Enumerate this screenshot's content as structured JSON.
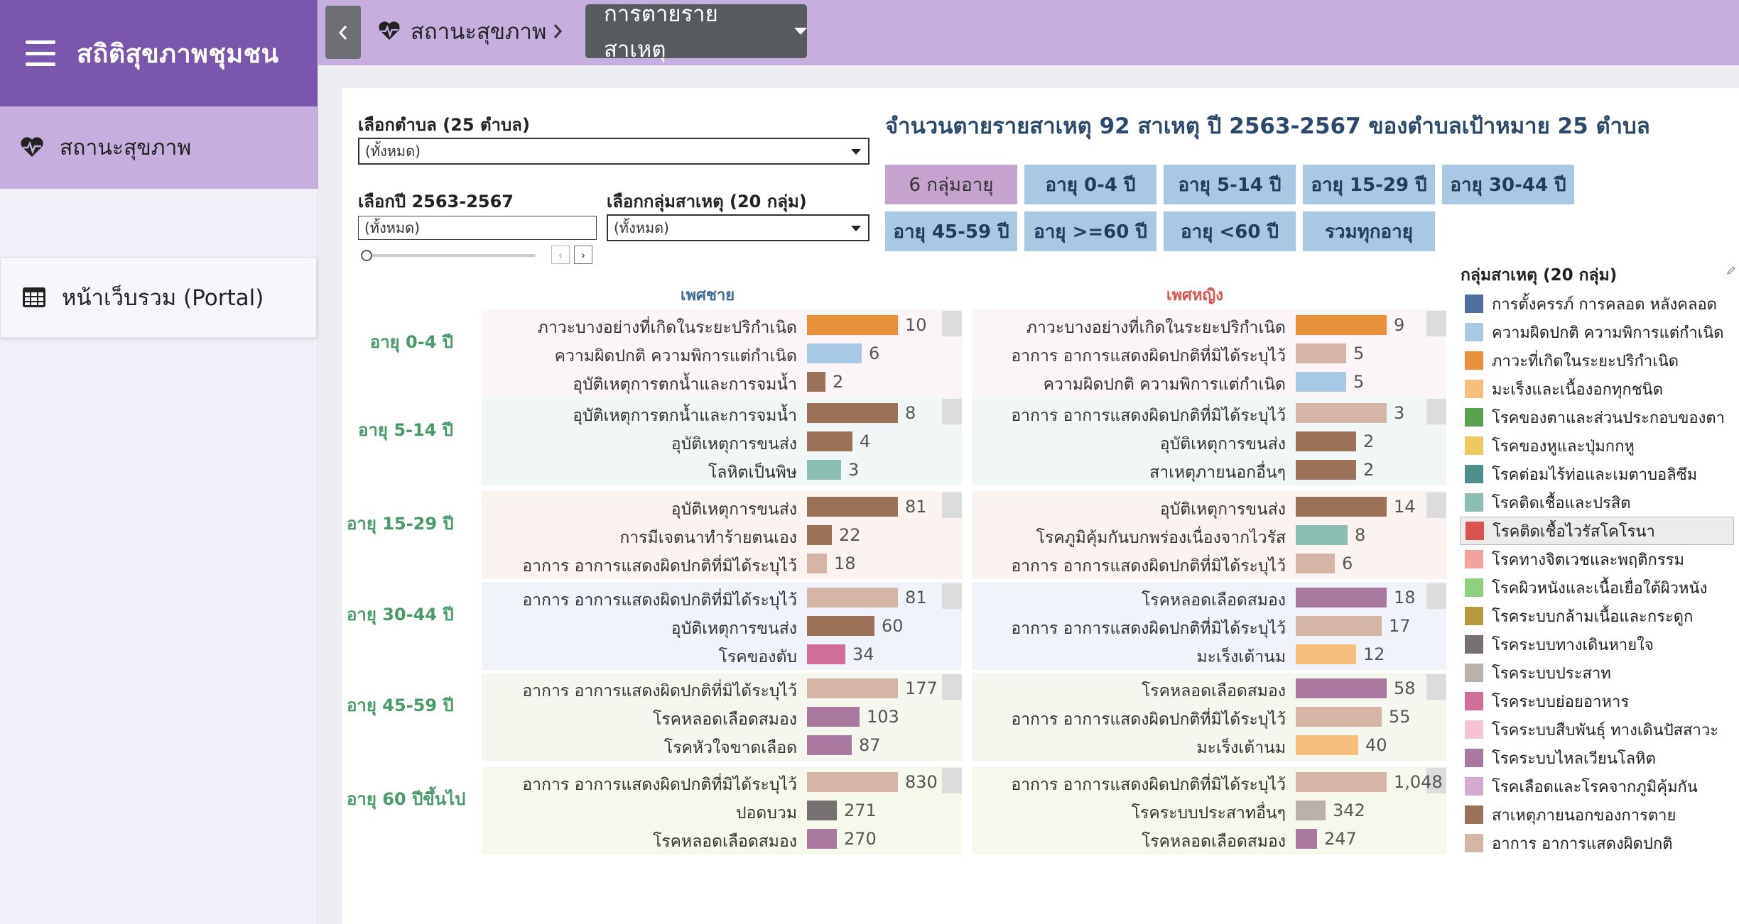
{
  "sidebar": {
    "brand": "สถิติสุขภาพชุมชน",
    "nav_health": "สถานะสุขภาพ",
    "nav_portal": "หน้าเว็บรวม (Portal)"
  },
  "breadcrumb": {
    "health": "สถานะสุขภาพ",
    "current": "การตายรายสาเหตุ"
  },
  "filters": {
    "tambon_label": "เลือกตำบล (25 ตำบล)",
    "tambon_value": "(ทั้งหมด)",
    "year_label": "เลือกปี 2563-2567",
    "year_value": "(ทั้งหมด)",
    "group_label": "เลือกกลุ่มสาเหตุ (20 กลุ่ม)",
    "group_value": "(ทั้งหมด)"
  },
  "main_title": "จำนวนตายรายสาเหตุ 92 สาเหตุ ปี 2563-2567 ของตำบลเป้าหมาย 25 ตำบล",
  "age_buttons": [
    "6 กลุ่มอายุ",
    "อายุ 0-4 ปี",
    "อายุ 5-14 ปี",
    "อายุ 15-29 ปี",
    "อายุ 30-44 ปี",
    "อายุ 45-59 ปี",
    "อายุ >=60 ปี",
    "อายุ <60 ปี",
    "รวมทุกอายุ"
  ],
  "column_heads": {
    "male": "เพศชาย",
    "female": "เพศหญิง"
  },
  "colors": {
    "brand": "#7a57ad",
    "topbar": "#c6afdf",
    "male_head": "#3e6a94",
    "female_head": "#d9534f"
  },
  "chart_data": {
    "type": "bar",
    "groups": [
      {
        "age": "อายุ 0-4 ปี",
        "male": [
          {
            "label": "ภาวะบางอย่างที่เกิดในระยะปริกำเนิด",
            "value": 10,
            "display": "10",
            "color": "#e8913a"
          },
          {
            "label": "ความผิดปกติ ความพิการแต่กำเนิด",
            "value": 6,
            "display": "6",
            "color": "#a7c9e6"
          },
          {
            "label": "อุบัติเหตุการตกน้ำและการจมน้ำ",
            "value": 2,
            "display": "2",
            "color": "#9b7157"
          }
        ],
        "female": [
          {
            "label": "ภาวะบางอย่างที่เกิดในระยะปริกำเนิด",
            "value": 9,
            "display": "9",
            "color": "#e8913a"
          },
          {
            "label": "อาการ อาการแสดงผิดปกติที่มิได้ระบุไว้",
            "value": 5,
            "display": "5",
            "color": "#d5b5a5"
          },
          {
            "label": "ความผิดปกติ ความพิการแต่กำเนิด",
            "value": 5,
            "display": "5",
            "color": "#a7c9e6"
          }
        ]
      },
      {
        "age": "อายุ 5-14 ปี",
        "male": [
          {
            "label": "อุบัติเหตุการตกน้ำและการจมน้ำ",
            "value": 8,
            "display": "8",
            "color": "#9b7157"
          },
          {
            "label": "อุบัติเหตุการขนส่ง",
            "value": 4,
            "display": "4",
            "color": "#9b7157"
          },
          {
            "label": "โลหิตเป็นพิษ",
            "value": 3,
            "display": "3",
            "color": "#8cbfb3"
          }
        ],
        "female": [
          {
            "label": "อาการ อาการแสดงผิดปกติที่มิได้ระบุไว้",
            "value": 3,
            "display": "3",
            "color": "#d5b5a5"
          },
          {
            "label": "อุบัติเหตุการขนส่ง",
            "value": 2,
            "display": "2",
            "color": "#9b7157"
          },
          {
            "label": "สาเหตุภายนอกอื่นๆ",
            "value": 2,
            "display": "2",
            "color": "#9b7157"
          }
        ]
      },
      {
        "age": "อายุ 15-29 ปี",
        "male": [
          {
            "label": "อุบัติเหตุการขนส่ง",
            "value": 81,
            "display": "81",
            "color": "#9b7157"
          },
          {
            "label": "การมีเจตนาทำร้ายตนเอง",
            "value": 22,
            "display": "22",
            "color": "#9b7157"
          },
          {
            "label": "อาการ อาการแสดงผิดปกติที่มิได้ระบุไว้",
            "value": 18,
            "display": "18",
            "color": "#d5b5a5"
          }
        ],
        "female": [
          {
            "label": "อุบัติเหตุการขนส่ง",
            "value": 14,
            "display": "14",
            "color": "#9b7157"
          },
          {
            "label": "โรคภูมิคุ้มกันบกพร่องเนื่องจากไวรัส",
            "value": 8,
            "display": "8",
            "color": "#8cbfb3"
          },
          {
            "label": "อาการ อาการแสดงผิดปกติที่มิได้ระบุไว้",
            "value": 6,
            "display": "6",
            "color": "#d5b5a5"
          }
        ]
      },
      {
        "age": "อายุ 30-44 ปี",
        "male": [
          {
            "label": "อาการ อาการแสดงผิดปกติที่มิได้ระบุไว้",
            "value": 81,
            "display": "81",
            "color": "#d5b5a5"
          },
          {
            "label": "อุบัติเหตุการขนส่ง",
            "value": 60,
            "display": "60",
            "color": "#9b7157"
          },
          {
            "label": "โรคของตับ",
            "value": 34,
            "display": "34",
            "color": "#d0709a"
          }
        ],
        "female": [
          {
            "label": "โรคหลอดเลือดสมอง",
            "value": 18,
            "display": "18",
            "color": "#a9789f"
          },
          {
            "label": "อาการ อาการแสดงผิดปกติที่มิได้ระบุไว้",
            "value": 17,
            "display": "17",
            "color": "#d5b5a5"
          },
          {
            "label": "มะเร็งเต้านม",
            "value": 12,
            "display": "12",
            "color": "#f6bf7e"
          }
        ]
      },
      {
        "age": "อายุ 45-59 ปี",
        "male": [
          {
            "label": "อาการ อาการแสดงผิดปกติที่มิได้ระบุไว้",
            "value": 177,
            "display": "177",
            "color": "#d5b5a5"
          },
          {
            "label": "โรคหลอดเลือดสมอง",
            "value": 103,
            "display": "103",
            "color": "#a9789f"
          },
          {
            "label": "โรคหัวใจขาดเลือด",
            "value": 87,
            "display": "87",
            "color": "#a9789f"
          }
        ],
        "female": [
          {
            "label": "โรคหลอดเลือดสมอง",
            "value": 58,
            "display": "58",
            "color": "#a9789f"
          },
          {
            "label": "อาการ อาการแสดงผิดปกติที่มิได้ระบุไว้",
            "value": 55,
            "display": "55",
            "color": "#d5b5a5"
          },
          {
            "label": "มะเร็งเต้านม",
            "value": 40,
            "display": "40",
            "color": "#f6bf7e"
          }
        ]
      },
      {
        "age": "อายุ 60 ปีขึ้นไป",
        "male": [
          {
            "label": "อาการ อาการแสดงผิดปกติที่มิได้ระบุไว้",
            "value": 830,
            "display": "830",
            "color": "#d5b5a5"
          },
          {
            "label": "ปอดบวม",
            "value": 271,
            "display": "271",
            "color": "#767070"
          },
          {
            "label": "โรคหลอดเลือดสมอง",
            "value": 270,
            "display": "270",
            "color": "#a9789f"
          }
        ],
        "female": [
          {
            "label": "อาการ อาการแสดงผิดปกติที่มิได้ระบุไว้",
            "value": 1048,
            "display": "1,048",
            "color": "#d5b5a5"
          },
          {
            "label": "โรคระบบประสาทอื่นๆ",
            "value": 342,
            "display": "342",
            "color": "#bab0ac"
          },
          {
            "label": "โรคหลอดเลือดสมอง",
            "value": 247,
            "display": "247",
            "color": "#a9789f"
          }
        ]
      }
    ]
  },
  "legend": {
    "title": "กลุ่มสาเหตุ (20 กลุ่ม)",
    "items": [
      {
        "label": "การตั้งครรภ์ การคลอด หลังคลอด",
        "color": "#4e6e9c"
      },
      {
        "label": "ความผิดปกติ ความพิการแต่กำเนิด",
        "color": "#a7c9e6"
      },
      {
        "label": "ภาวะที่เกิดในระยะปริกำเนิด",
        "color": "#e8913a"
      },
      {
        "label": "มะเร็งและเนื้องอกทุกชนิด",
        "color": "#f6bf7e"
      },
      {
        "label": "โรคของตาและส่วนประกอบของตา",
        "color": "#59a14f"
      },
      {
        "label": "โรคของหูและปุ่มกกหู",
        "color": "#edc95f"
      },
      {
        "label": "โรคต่อมไร้ท่อและเมตาบอลิซึม",
        "color": "#4f8e8a"
      },
      {
        "label": "โรคติดเชื้อและปรสิต",
        "color": "#8cbfb3"
      },
      {
        "label": "โรคติดเชื้อไวรัสโคโรนา",
        "color": "#d9534f"
      },
      {
        "label": "โรคทางจิตเวชและพฤติกรรม",
        "color": "#f2a39d"
      },
      {
        "label": "โรคผิวหนังและเนื้อเยื่อใต้ผิวหนัง",
        "color": "#8fd07f"
      },
      {
        "label": "โรคระบบกล้ามเนื้อและกระดูก",
        "color": "#b89a3e"
      },
      {
        "label": "โรคระบบทางเดินหายใจ",
        "color": "#767070"
      },
      {
        "label": "โรคระบบประสาท",
        "color": "#bab0ac"
      },
      {
        "label": "โรคระบบย่อยอาหาร",
        "color": "#d0709a"
      },
      {
        "label": "โรคระบบสืบพันธุ์ ทางเดินปัสสาวะ",
        "color": "#f5c3d3"
      },
      {
        "label": "โรคระบบไหลเวียนโลหิต",
        "color": "#a9789f"
      },
      {
        "label": "โรคเลือดและโรคจากภูมิคุ้มกัน",
        "color": "#d6a9cf"
      },
      {
        "label": "สาเหตุภายนอกของการตาย",
        "color": "#9b7157"
      },
      {
        "label": "อาการ อาการแสดงผิดปกติ",
        "color": "#d5b5a5"
      }
    ],
    "selected_index": 8
  }
}
